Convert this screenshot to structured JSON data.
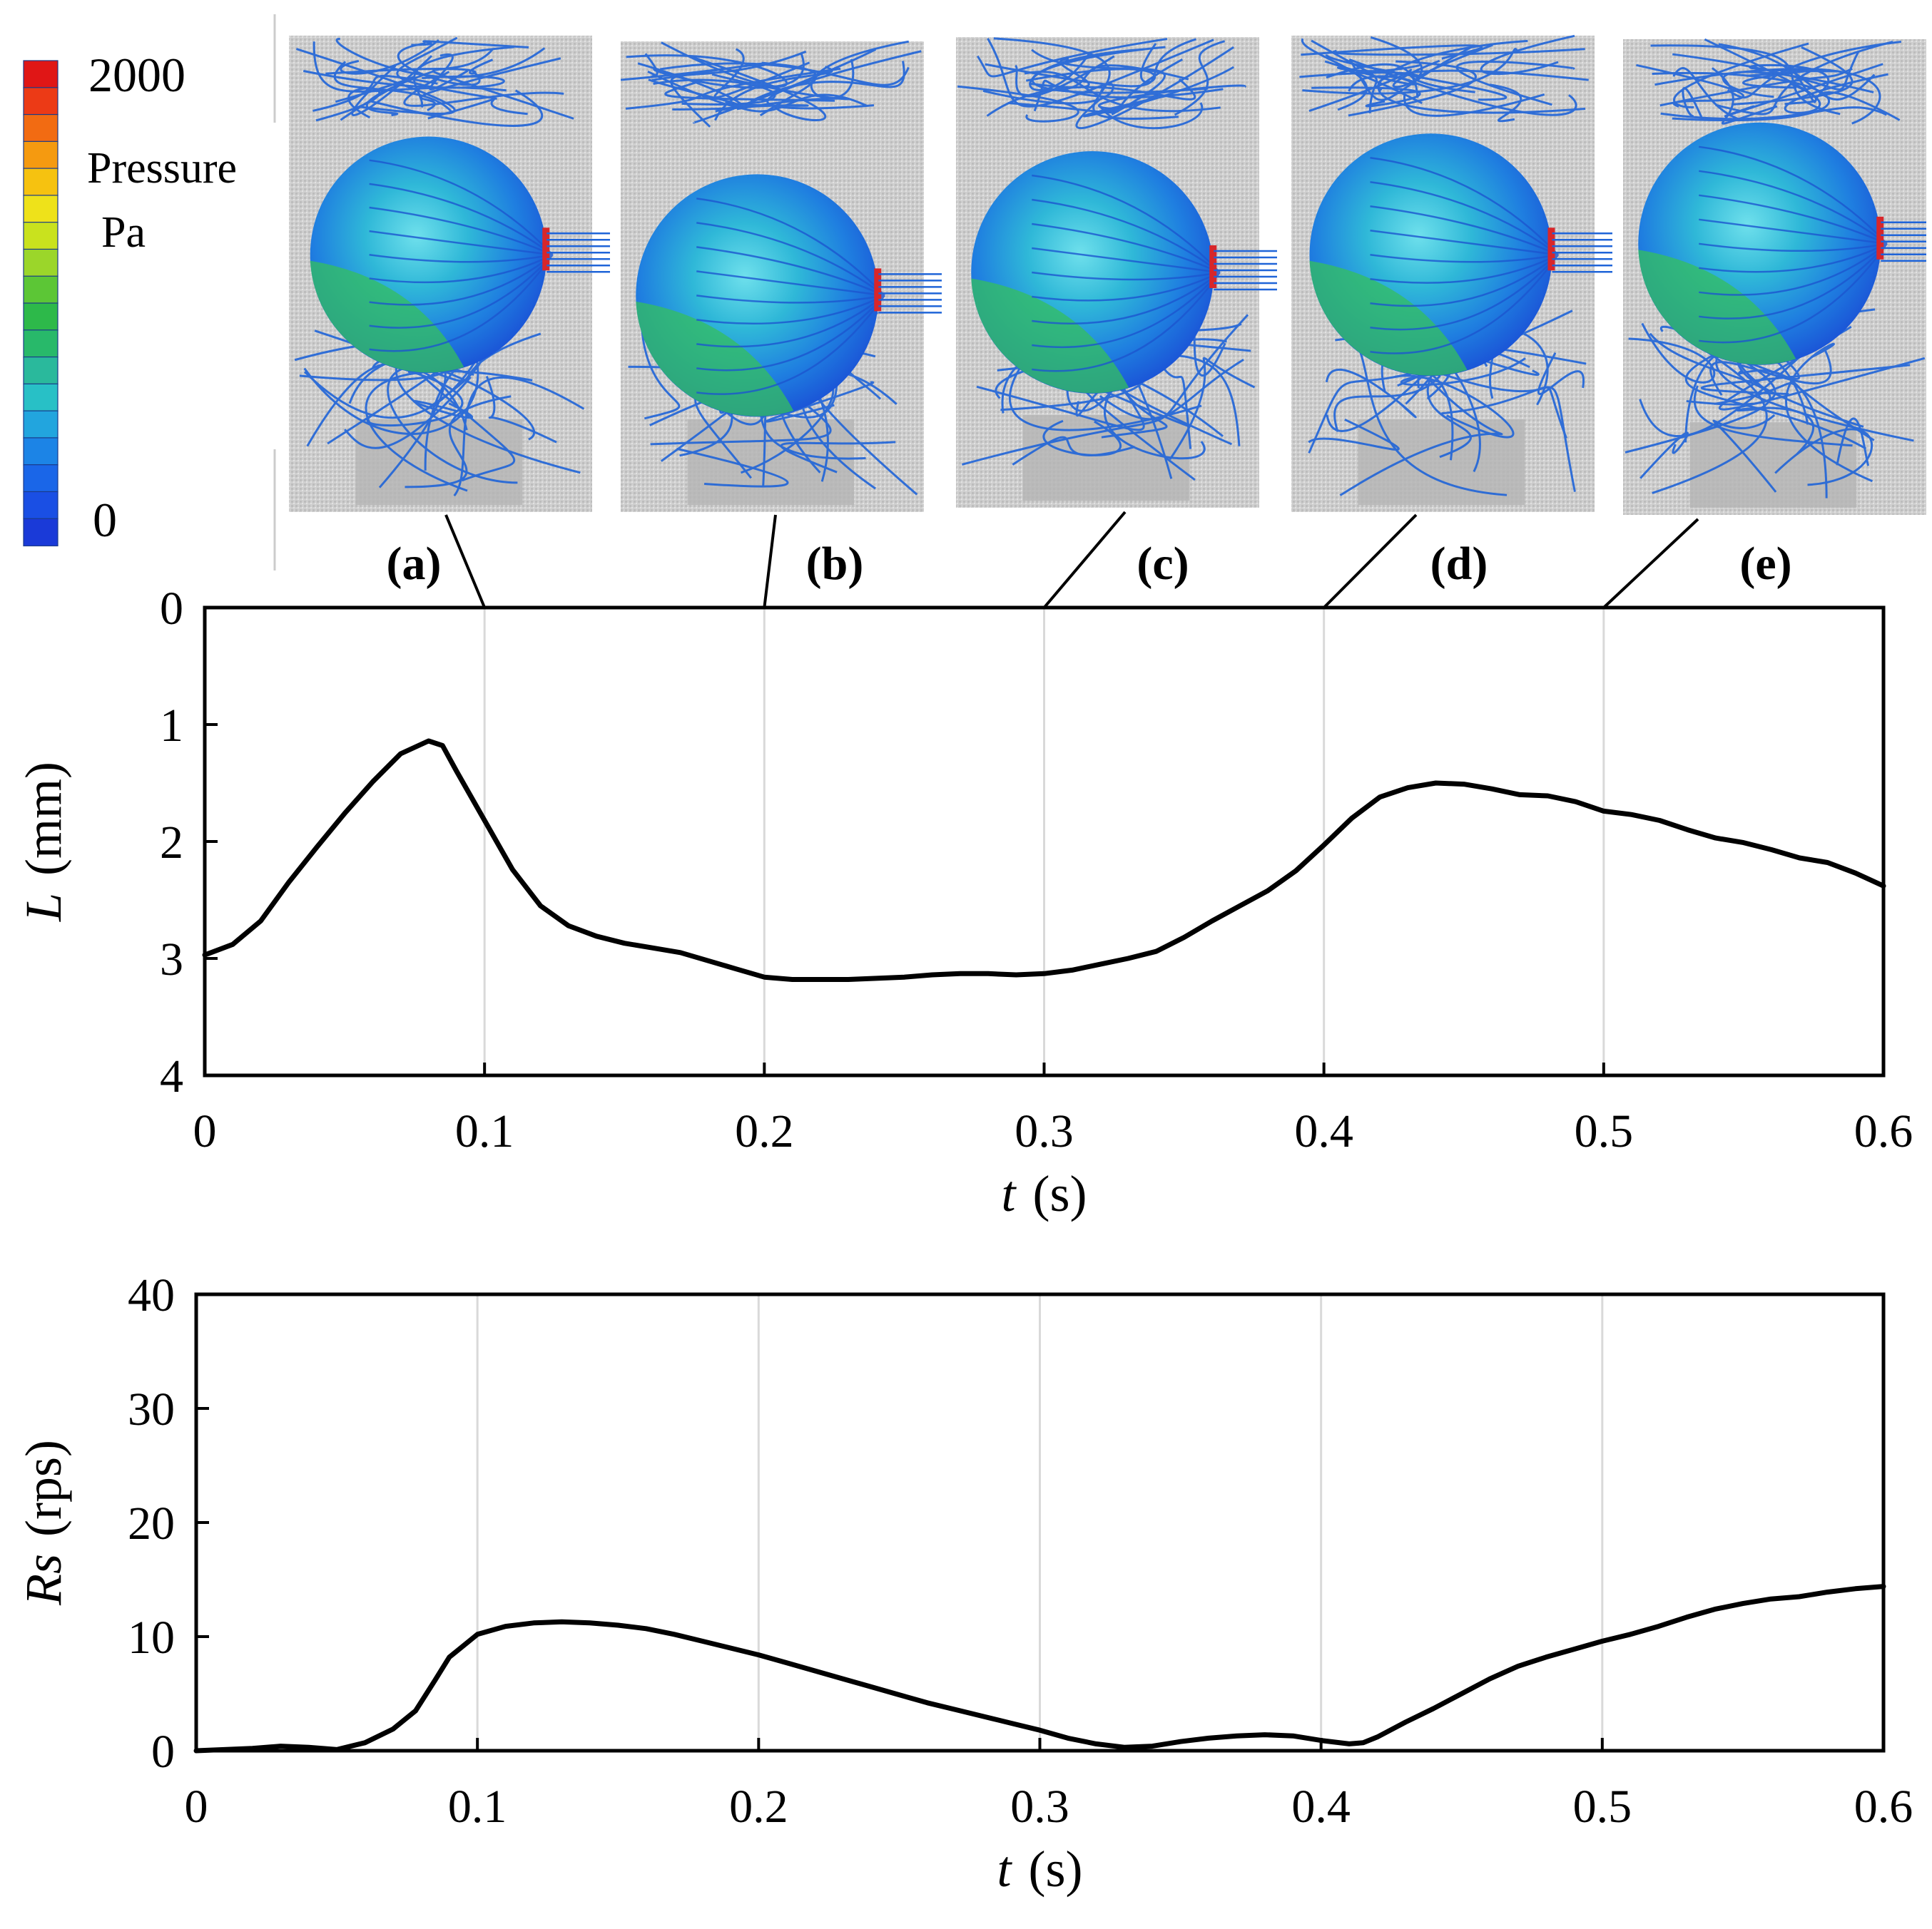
{
  "colorbar": {
    "max_label": "2000",
    "min_label": "0",
    "title_line1": "Pressure",
    "title_line2": "Pa",
    "colors": [
      "#e01616",
      "#ec3a16",
      "#f26b12",
      "#f59a10",
      "#f6c210",
      "#eee21a",
      "#c9e21e",
      "#9bd62a",
      "#5cc636",
      "#2db94a",
      "#28b96a",
      "#2ab99c",
      "#28c0c6",
      "#22a5de",
      "#1c84e6",
      "#1a66e8",
      "#1a4fe4",
      "#1a3ad8"
    ]
  },
  "snapshots": [
    {
      "label": "(a)",
      "t": 0.1
    },
    {
      "label": "(b)",
      "t": 0.2
    },
    {
      "label": "(c)",
      "t": 0.3
    },
    {
      "label": "(d)",
      "t": 0.4
    },
    {
      "label": "(e)",
      "t": 0.5
    }
  ],
  "chart_data": [
    {
      "type": "line",
      "xlabel_italic": "t",
      "xlabel_unit": "(s)",
      "ylabel_italic": "L",
      "ylabel_unit": "(mm)",
      "xlim": [
        0,
        0.6
      ],
      "ylim": [
        0,
        4
      ],
      "y_inverted": true,
      "xticks": [
        "0",
        "0.1",
        "0.2",
        "0.3",
        "0.4",
        "0.5",
        "0.6"
      ],
      "yticks": [
        "0",
        "1",
        "2",
        "3",
        "4"
      ],
      "grid": "vertical",
      "line_color": "#000000",
      "x": [
        0,
        0.01,
        0.02,
        0.03,
        0.04,
        0.05,
        0.06,
        0.07,
        0.08,
        0.085,
        0.09,
        0.1,
        0.11,
        0.12,
        0.13,
        0.14,
        0.15,
        0.16,
        0.17,
        0.18,
        0.19,
        0.2,
        0.21,
        0.22,
        0.23,
        0.24,
        0.25,
        0.26,
        0.27,
        0.28,
        0.29,
        0.3,
        0.31,
        0.32,
        0.33,
        0.34,
        0.35,
        0.36,
        0.37,
        0.38,
        0.39,
        0.4,
        0.41,
        0.42,
        0.43,
        0.44,
        0.45,
        0.46,
        0.47,
        0.48,
        0.49,
        0.5,
        0.51,
        0.52,
        0.53,
        0.54,
        0.55,
        0.56,
        0.57,
        0.58,
        0.59,
        0.6
      ],
      "values": [
        2.97,
        2.88,
        2.68,
        2.35,
        2.05,
        1.76,
        1.49,
        1.25,
        1.14,
        1.18,
        1.4,
        1.82,
        2.24,
        2.55,
        2.72,
        2.81,
        2.87,
        2.91,
        2.95,
        3.02,
        3.09,
        3.16,
        3.18,
        3.18,
        3.18,
        3.17,
        3.16,
        3.14,
        3.13,
        3.13,
        3.14,
        3.13,
        3.1,
        3.05,
        3.0,
        2.94,
        2.82,
        2.68,
        2.55,
        2.42,
        2.25,
        2.03,
        1.8,
        1.62,
        1.54,
        1.5,
        1.51,
        1.55,
        1.6,
        1.61,
        1.66,
        1.74,
        1.77,
        1.82,
        1.9,
        1.97,
        2.01,
        2.07,
        2.14,
        2.18,
        2.27,
        2.38
      ]
    },
    {
      "type": "line",
      "xlabel_italic": "t",
      "xlabel_unit": "(s)",
      "ylabel_italic": "Rs",
      "ylabel_unit": "(rps)",
      "xlim": [
        0,
        0.6
      ],
      "ylim": [
        0,
        40
      ],
      "xticks": [
        "0",
        "0.1",
        "0.2",
        "0.3",
        "0.4",
        "0.5",
        "0.6"
      ],
      "yticks": [
        "0",
        "10",
        "20",
        "30",
        "40"
      ],
      "grid": "vertical",
      "line_color": "#000000",
      "x": [
        0,
        0.01,
        0.02,
        0.03,
        0.04,
        0.05,
        0.06,
        0.07,
        0.078,
        0.085,
        0.09,
        0.1,
        0.11,
        0.12,
        0.13,
        0.14,
        0.15,
        0.16,
        0.17,
        0.18,
        0.19,
        0.2,
        0.21,
        0.22,
        0.23,
        0.24,
        0.25,
        0.26,
        0.27,
        0.28,
        0.29,
        0.3,
        0.31,
        0.32,
        0.33,
        0.34,
        0.35,
        0.36,
        0.37,
        0.38,
        0.39,
        0.4,
        0.41,
        0.415,
        0.42,
        0.43,
        0.44,
        0.45,
        0.46,
        0.47,
        0.48,
        0.49,
        0.5,
        0.51,
        0.52,
        0.53,
        0.54,
        0.55,
        0.56,
        0.57,
        0.58,
        0.59,
        0.6
      ],
      "values": [
        0.0,
        0.1,
        0.2,
        0.4,
        0.3,
        0.1,
        0.7,
        1.9,
        3.5,
        6.2,
        8.2,
        10.2,
        10.9,
        11.2,
        11.3,
        11.2,
        11.0,
        10.7,
        10.2,
        9.6,
        9.0,
        8.4,
        7.7,
        7.0,
        6.3,
        5.6,
        4.9,
        4.2,
        3.6,
        3.0,
        2.4,
        1.8,
        1.1,
        0.6,
        0.3,
        0.4,
        0.8,
        1.1,
        1.3,
        1.4,
        1.3,
        0.9,
        0.6,
        0.7,
        1.2,
        2.5,
        3.7,
        5.0,
        6.3,
        7.4,
        8.2,
        8.9,
        9.6,
        10.2,
        10.9,
        11.7,
        12.4,
        12.9,
        13.3,
        13.5,
        13.9,
        14.2,
        14.4
      ]
    }
  ]
}
